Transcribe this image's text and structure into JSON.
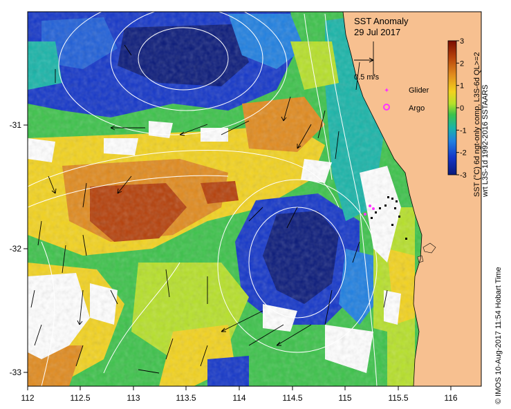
{
  "title": {
    "line1": "SST Anomaly",
    "line2": "29 Jul 2017"
  },
  "velocity_scale": {
    "label": "0.5 m/s"
  },
  "legend": {
    "glider": {
      "label": "Glider",
      "color": "#ff33ff"
    },
    "argo": {
      "label": "Argo",
      "color": "#ff33ff"
    }
  },
  "colorbar": {
    "ticks": [
      "3",
      "2",
      "1",
      "0",
      "-1",
      "-2",
      "-3"
    ],
    "label_line1": "SST (°C) 6d ngt-only comp, L3S-6d QL>=2",
    "label_line2": "wrt L3S-1d 1992-2016 SSTAARS",
    "colors": [
      "#7a0c00",
      "#b5400a",
      "#e08a1e",
      "#f2d21e",
      "#b6e02a",
      "#3cc24a",
      "#18b4a8",
      "#1f7fe0",
      "#1436c8",
      "#0a1a7a"
    ]
  },
  "axes": {
    "x_ticks": [
      "112",
      "112.5",
      "113",
      "113.5",
      "114",
      "114.5",
      "115",
      "115.5",
      "116"
    ],
    "y_ticks": [
      "-31",
      "-32",
      "-33"
    ]
  },
  "credit": "© IMOS 10-Aug-2017 11:54 Hobart Time",
  "colors": {
    "land": "#f7c090",
    "no_data": "#ffffff"
  }
}
